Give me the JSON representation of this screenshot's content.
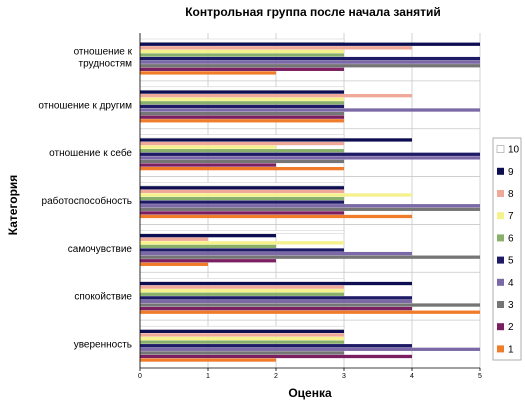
{
  "chart_data": {
    "type": "bar",
    "orientation": "horizontal",
    "title": "Контрольная группа после начала занятий",
    "xlabel": "Оценка",
    "ylabel": "Категория",
    "xlim": [
      0,
      5
    ],
    "x_ticks": [
      0,
      1,
      2,
      3,
      4,
      5
    ],
    "grid": true,
    "legend_position": "right",
    "categories": [
      "отношение к трудностям",
      "отношение к другим",
      "отношение к себе",
      "работоспособность",
      "самочувствие",
      "спокойствие",
      "уверенность"
    ],
    "category_lines": [
      [
        "отношение к",
        "трудностям"
      ],
      [
        "отношение к другим"
      ],
      [
        "отношение к себе"
      ],
      [
        "работоспособность"
      ],
      [
        "самочувствие"
      ],
      [
        "спокойствие"
      ],
      [
        "уверенность"
      ]
    ],
    "series": [
      {
        "name": "1",
        "color": "#f07c2a",
        "values": [
          2,
          3,
          3,
          4,
          1,
          5,
          2
        ]
      },
      {
        "name": "2",
        "color": "#7b1f60",
        "values": [
          3,
          3,
          2,
          3,
          2,
          4,
          4
        ]
      },
      {
        "name": "3",
        "color": "#757575",
        "values": [
          5,
          3,
          3,
          5,
          5,
          5,
          3
        ]
      },
      {
        "name": "4",
        "color": "#7b68a6",
        "values": [
          5,
          5,
          5,
          5,
          4,
          4,
          5
        ]
      },
      {
        "name": "5",
        "color": "#1e1a66",
        "values": [
          5,
          3,
          5,
          3,
          3,
          4,
          4
        ]
      },
      {
        "name": "6",
        "color": "#88b06a",
        "values": [
          3,
          3,
          3,
          3,
          2,
          3,
          3
        ]
      },
      {
        "name": "7",
        "color": "#f5f28c",
        "values": [
          3,
          3,
          2,
          4,
          3,
          3,
          3
        ]
      },
      {
        "name": "8",
        "color": "#f0a898",
        "values": [
          4,
          4,
          3,
          3,
          1,
          3,
          3
        ]
      },
      {
        "name": "9",
        "color": "#0d0d52",
        "values": [
          5,
          3,
          4,
          3,
          2,
          4,
          3
        ]
      },
      {
        "name": "10",
        "color": "#ffffff",
        "values": [
          3,
          3,
          3,
          3,
          3,
          3,
          3
        ]
      }
    ]
  }
}
